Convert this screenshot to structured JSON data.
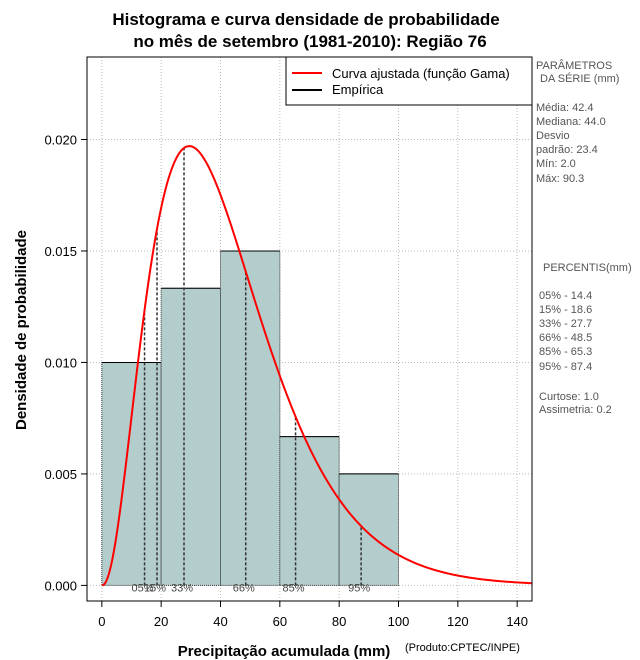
{
  "chart_data": {
    "type": "bar",
    "title_line1": "Histograma e curva densidade de probabilidade",
    "title_line2": "no mês de setembro (1981-2010): Região 76",
    "xlabel": "Precipitação acumulada (mm)",
    "ylabel": "Densidade de probabilidade",
    "credit": "(Produto:CPTEC/INPE)",
    "xlim": [
      -5,
      145
    ],
    "ylim": [
      -0.0007,
      0.0237
    ],
    "x_ticks": [
      0,
      20,
      40,
      60,
      80,
      100,
      120,
      140
    ],
    "y_ticks": [
      0.0,
      0.005,
      0.01,
      0.015,
      0.02
    ],
    "y_tick_labels": [
      "0.000",
      "0.005",
      "0.010",
      "0.015",
      "0.020"
    ],
    "grid": true,
    "bins": [
      {
        "start": 0,
        "end": 20,
        "density": 0.01
      },
      {
        "start": 20,
        "end": 40,
        "density": 0.01333
      },
      {
        "start": 40,
        "end": 60,
        "density": 0.015
      },
      {
        "start": 60,
        "end": 80,
        "density": 0.00667
      },
      {
        "start": 80,
        "end": 100,
        "density": 0.005
      }
    ],
    "gamma_fit": {
      "shape": 3.28,
      "scale": 12.93
    },
    "percentile_markers": [
      {
        "label": "05%",
        "x": 14.4
      },
      {
        "label": "15%",
        "x": 18.6
      },
      {
        "label": "33%",
        "x": 27.7
      },
      {
        "label": "66%",
        "x": 48.5
      },
      {
        "label": "85%",
        "x": 65.3
      },
      {
        "label": "95%",
        "x": 87.4
      }
    ],
    "legend": [
      {
        "label": "Curva ajustada (função Gama)",
        "color": "#ff0000"
      },
      {
        "label": "Empírica",
        "color": "#000000"
      }
    ],
    "legend_position": "top-right"
  },
  "stats": {
    "params_title_1": "PARÂMETROS",
    "params_title_2": "DA SÉRIE (mm)",
    "lines": [
      "Média:  42.4",
      "Mediana:  44.0",
      "Desvio",
      "padrão:  23.4",
      "Mín:  2.0",
      "Máx:  90.3"
    ],
    "percentis_title": "PERCENTIS(mm)",
    "percentis": [
      "05% -   14.4",
      "15% -   18.6",
      "33% -   27.7",
      "66% -   48.5",
      "85% -   65.3",
      "95% -   87.4"
    ],
    "extra": [
      "Curtose:  1.0",
      "Assimetria:  0.2"
    ]
  },
  "colors": {
    "bar_fill": "#b3cccc",
    "curve": "#ff0000",
    "grid": "#bbbbbb"
  }
}
